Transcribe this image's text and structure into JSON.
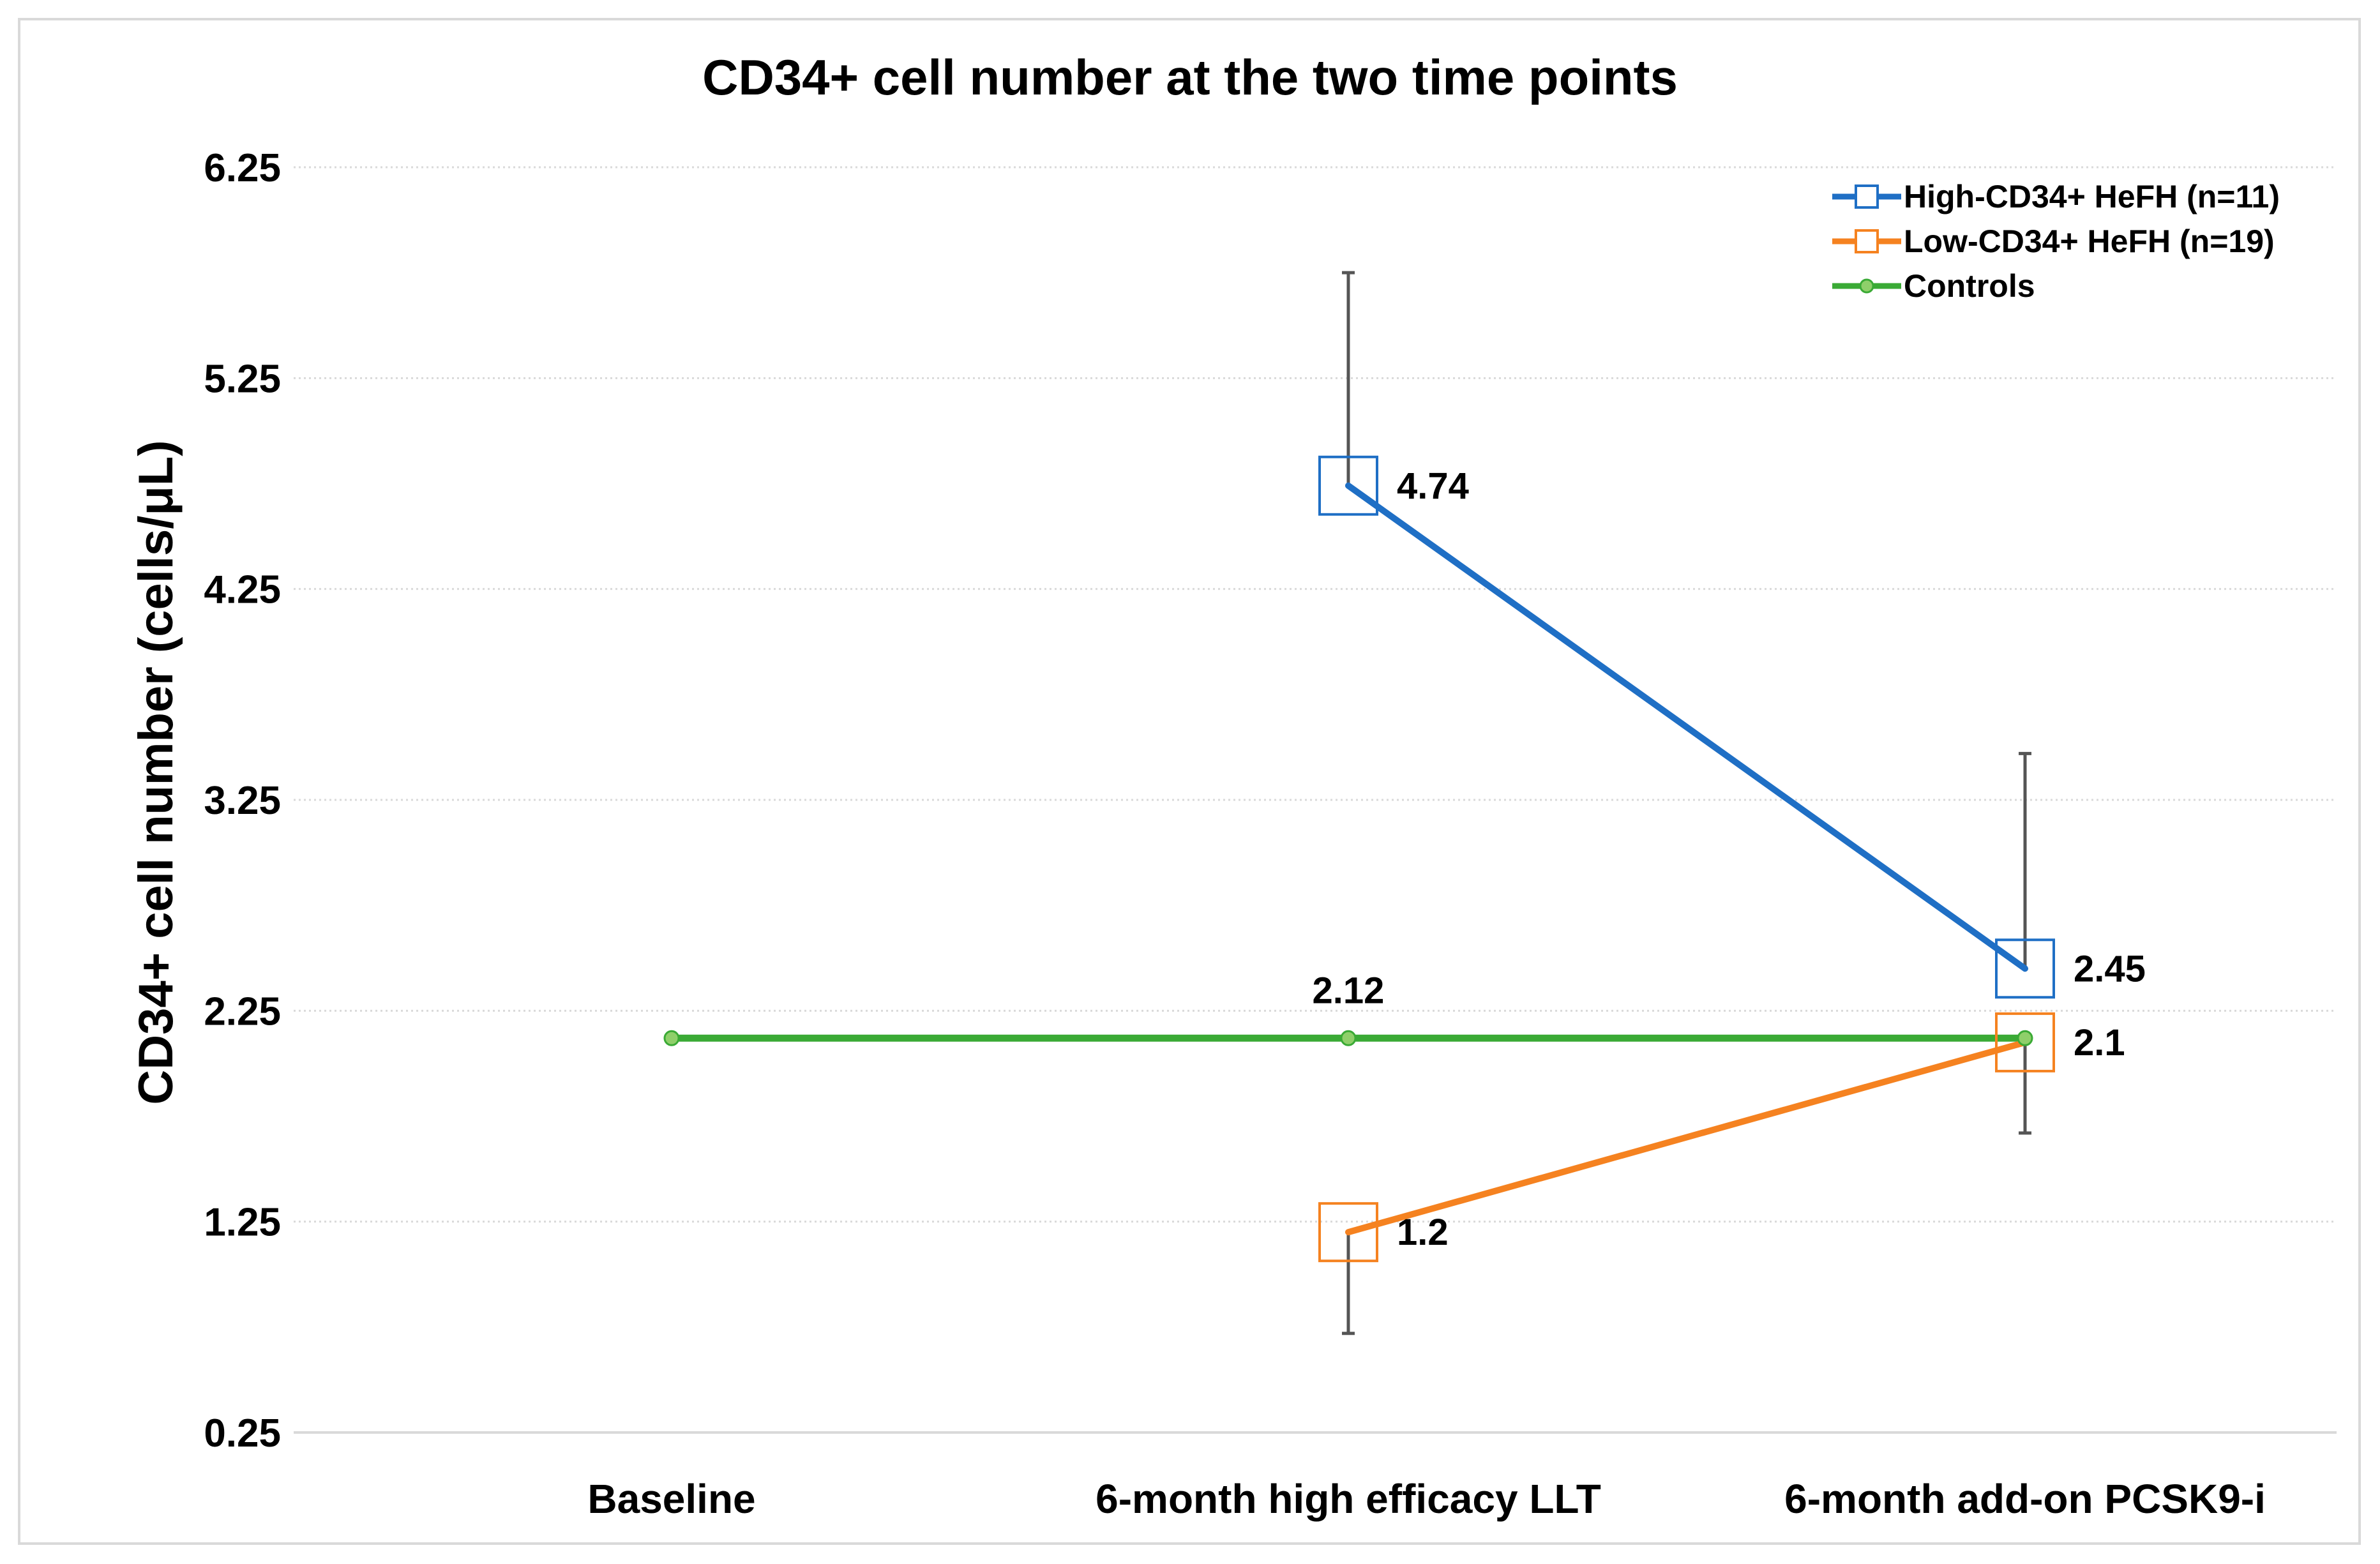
{
  "chart_data": {
    "type": "line",
    "title": "CD34+ cell number at the two time points",
    "xlabel": "",
    "ylabel": "CD34+ cell number (cells/μL)",
    "ylim": [
      0.25,
      6.25
    ],
    "yticks": [
      "0.25",
      "1.25",
      "2.25",
      "3.25",
      "4.25",
      "5.25",
      "6.25"
    ],
    "categories": [
      "Baseline",
      "6-month high efficacy LLT",
      "6-month add-on PCSK9-i"
    ],
    "legend_position": "top-right",
    "series": [
      {
        "name": "High-CD34+ HeFH (n=11)",
        "color": "#1f6fc5",
        "marker": "square-open",
        "values": [
          null,
          4.74,
          2.45
        ],
        "labels": [
          null,
          "4.74",
          "2.45"
        ],
        "error_bars": [
          null,
          [
            4.74,
            5.75
          ],
          [
            2.45,
            3.47
          ]
        ]
      },
      {
        "name": "Low-CD34+ HeFH (n=19)",
        "color": "#f58220",
        "marker": "square-open",
        "values": [
          null,
          1.2,
          2.1
        ],
        "labels": [
          null,
          "1.2",
          "2.1"
        ],
        "error_bars": [
          null,
          [
            0.72,
            1.2
          ],
          [
            1.67,
            2.1
          ]
        ]
      },
      {
        "name": "Controls",
        "color": "#3aaa35",
        "marker": "dot",
        "values": [
          2.12,
          2.12,
          2.12
        ],
        "labels": [
          null,
          "2.12",
          null
        ],
        "error_bars": [
          null,
          null,
          null
        ]
      }
    ]
  }
}
